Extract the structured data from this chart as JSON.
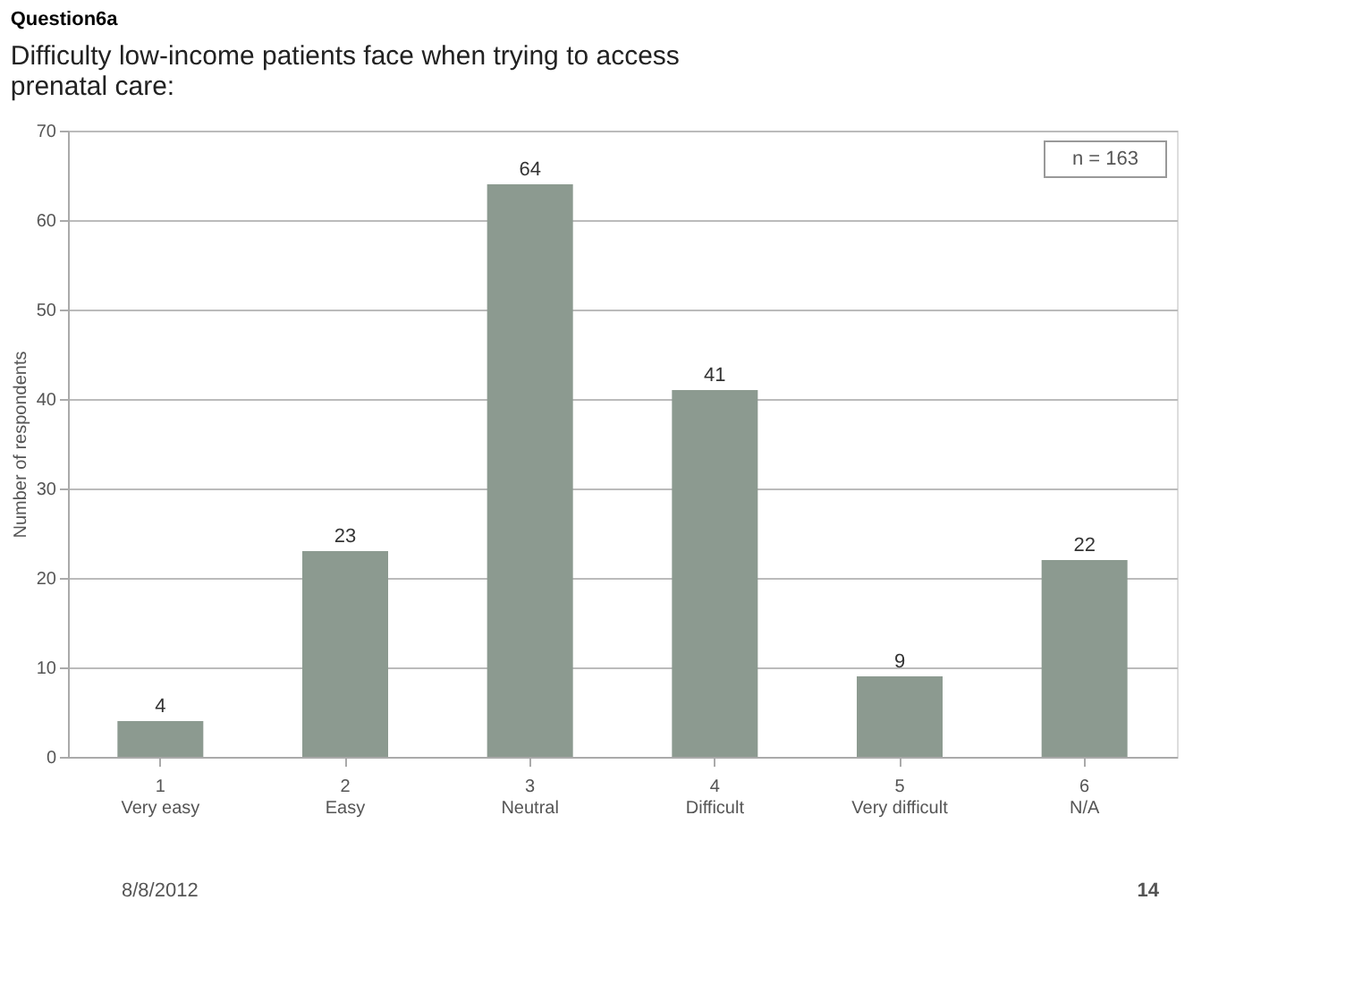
{
  "chart_data": {
    "type": "bar",
    "title": "Question6a",
    "subtitle": "Difficulty low-income patients face when trying to access\nprenatal care:",
    "ylabel": "Number of respondents",
    "categories": [
      "1\nVery easy",
      "2\nEasy",
      "3\nNeutral",
      "4\nDifficult",
      "5\nVery difficult",
      "6\nN/A"
    ],
    "values": [
      4,
      23,
      64,
      41,
      9,
      22
    ],
    "color": "#8c9a90",
    "ylim": [
      0,
      70
    ],
    "yticks": [
      0,
      10,
      20,
      30,
      40,
      50,
      60,
      70
    ],
    "grid": "y",
    "data_labels": true,
    "annotations": [
      "n = 163",
      "8/8/2012",
      "14"
    ]
  }
}
